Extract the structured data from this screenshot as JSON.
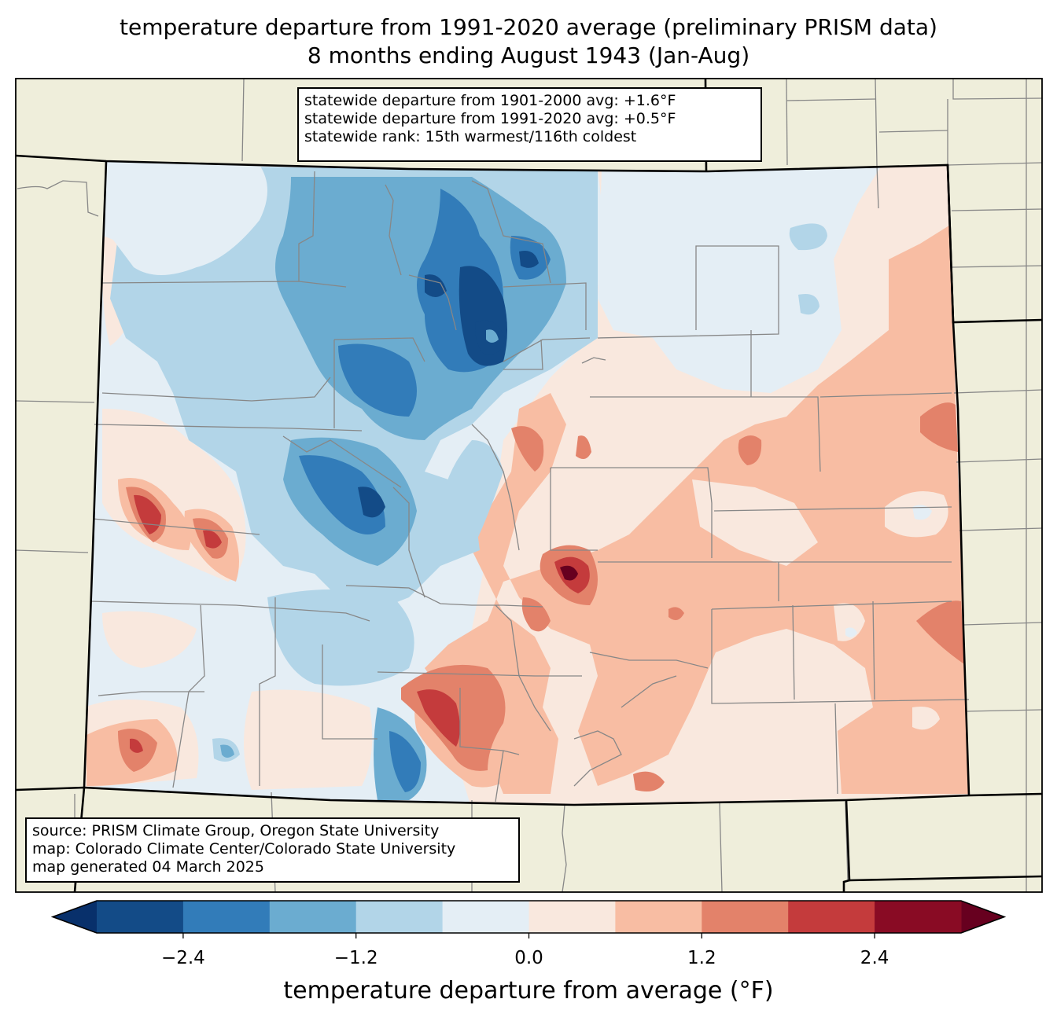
{
  "title": {
    "line1": "temperature departure from 1991-2020 average (preliminary PRISM data)",
    "line2": "8 months ending August 1943 (Jan-Aug)"
  },
  "stats_box": {
    "line1": "statewide departure from 1901-2000 avg: +1.6°F",
    "line2": "statewide departure from 1991-2020 avg: +0.5°F",
    "line3": "statewide rank: 15th warmest/116th coldest"
  },
  "credits_box": {
    "line1": "source: PRISM Climate Group, Oregon State University",
    "line2": "map: Colorado Climate Center/Colorado State University",
    "line3": "map generated 04 March 2025"
  },
  "colorbar": {
    "label": "temperature departure from average (°F)",
    "levels": [
      -3.0,
      -2.4,
      -1.8,
      -1.2,
      -0.6,
      0.0,
      0.6,
      1.2,
      1.8,
      2.4,
      3.0
    ],
    "colors": [
      "#134b87",
      "#327cb9",
      "#6bacd0",
      "#b2d5e8",
      "#e4eef5",
      "#f9e8de",
      "#f8bda3",
      "#e3826a",
      "#c43b3c",
      "#890b24"
    ],
    "under_color": "#08306b",
    "over_color": "#67001f",
    "ticks": [
      {
        "value": -2.4,
        "label": "−2.4"
      },
      {
        "value": -1.2,
        "label": "−1.2"
      },
      {
        "value": 0.0,
        "label": "0.0"
      },
      {
        "value": 1.2,
        "label": "1.2"
      },
      {
        "value": 2.4,
        "label": "2.4"
      }
    ]
  },
  "map_style": {
    "land_color": "#efeedb",
    "state_border_color": "#000000",
    "county_border_color": "#878787"
  }
}
